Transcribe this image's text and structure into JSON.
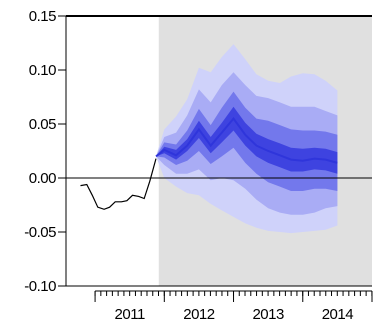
{
  "chart_data": {
    "type": "area",
    "title": "",
    "xlabel": "",
    "ylabel": "",
    "xlim": [
      2010.58,
      2015.0
    ],
    "ylim": [
      -0.1,
      0.15
    ],
    "grid": false,
    "legend": "none",
    "x_tick_labels": [
      {
        "label": "2011",
        "x": 2011.5
      },
      {
        "label": "2012",
        "x": 2012.5
      },
      {
        "label": "2013",
        "x": 2013.5
      },
      {
        "label": "2014",
        "x": 2014.5
      }
    ],
    "x_year_ticks": [
      2011.0,
      2012.0,
      2013.0,
      2014.0,
      2015.0
    ],
    "x_month_step": 0.0833,
    "y_tick_labels": [
      {
        "label": "0.15",
        "value": 0.15
      },
      {
        "label": "0.10",
        "value": 0.1
      },
      {
        "label": "0.05",
        "value": 0.05
      },
      {
        "label": "0.00",
        "value": 0.0
      },
      {
        "label": "-0.05",
        "value": -0.05
      },
      {
        "label": "-0.10",
        "value": -0.1
      }
    ],
    "forecast_region": {
      "start": 2011.92,
      "end": 2015.0
    },
    "history": {
      "x": [
        2010.79,
        2010.88,
        2010.96,
        2011.04,
        2011.13,
        2011.21,
        2011.29,
        2011.38,
        2011.46,
        2011.54,
        2011.63,
        2011.71,
        2011.79,
        2011.88
      ],
      "y": [
        -0.007,
        -0.006,
        -0.016,
        -0.027,
        -0.029,
        -0.027,
        -0.022,
        -0.022,
        -0.021,
        -0.016,
        -0.017,
        -0.019,
        -0.003,
        0.018
      ]
    },
    "fan": {
      "x": [
        2011.88,
        2012.0,
        2012.17,
        2012.33,
        2012.5,
        2012.67,
        2012.83,
        2013.0,
        2013.17,
        2013.33,
        2013.5,
        2013.67,
        2013.83,
        2014.0,
        2014.17,
        2014.33,
        2014.5
      ],
      "median": [
        0.02,
        0.026,
        0.021,
        0.03,
        0.045,
        0.03,
        0.042,
        0.055,
        0.04,
        0.03,
        0.025,
        0.021,
        0.017,
        0.016,
        0.018,
        0.017,
        0.014
      ],
      "bands": [
        {
          "color": "#cfd2fa",
          "lower": [
            0.02,
            0.0,
            -0.008,
            -0.014,
            -0.016,
            -0.024,
            -0.03,
            -0.036,
            -0.042,
            -0.046,
            -0.049,
            -0.05,
            -0.051,
            -0.05,
            -0.049,
            -0.048,
            -0.044
          ],
          "upper": [
            0.02,
            0.045,
            0.057,
            0.073,
            0.102,
            0.098,
            0.112,
            0.124,
            0.11,
            0.096,
            0.09,
            0.088,
            0.094,
            0.097,
            0.096,
            0.09,
            0.081
          ]
        },
        {
          "color": "#a9acf5",
          "lower": [
            0.02,
            0.012,
            0.004,
            0.004,
            0.008,
            -0.002,
            0.0,
            -0.002,
            -0.01,
            -0.02,
            -0.028,
            -0.032,
            -0.034,
            -0.034,
            -0.032,
            -0.028,
            -0.026
          ],
          "upper": [
            0.02,
            0.038,
            0.042,
            0.058,
            0.082,
            0.07,
            0.086,
            0.098,
            0.086,
            0.076,
            0.074,
            0.07,
            0.066,
            0.066,
            0.066,
            0.062,
            0.058
          ]
        },
        {
          "color": "#7378ec",
          "lower": [
            0.02,
            0.019,
            0.012,
            0.016,
            0.025,
            0.013,
            0.02,
            0.028,
            0.014,
            0.004,
            -0.004,
            -0.008,
            -0.012,
            -0.012,
            -0.01,
            -0.01,
            -0.012
          ],
          "upper": [
            0.02,
            0.033,
            0.031,
            0.044,
            0.064,
            0.049,
            0.065,
            0.08,
            0.065,
            0.055,
            0.053,
            0.049,
            0.045,
            0.044,
            0.044,
            0.043,
            0.04
          ]
        },
        {
          "color": "#3e43e0",
          "lower": [
            0.02,
            0.023,
            0.017,
            0.025,
            0.037,
            0.023,
            0.033,
            0.044,
            0.03,
            0.02,
            0.014,
            0.01,
            0.006,
            0.006,
            0.008,
            0.007,
            0.004
          ],
          "upper": [
            0.02,
            0.029,
            0.026,
            0.036,
            0.053,
            0.038,
            0.051,
            0.066,
            0.051,
            0.041,
            0.036,
            0.032,
            0.028,
            0.027,
            0.028,
            0.027,
            0.024
          ]
        }
      ]
    },
    "colors": {
      "forecast_shade": "#e0e0e0",
      "history_line": "#000000",
      "median_line": "#2f35db",
      "axis": "#000000"
    }
  }
}
